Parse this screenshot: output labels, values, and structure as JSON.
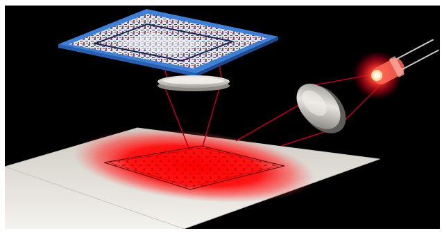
{
  "image": {
    "background_color": "#000000",
    "frame_color": "#ffffff",
    "accent_red": "#ff0000",
    "beam_color": "#b3001b",
    "screen_color": "#e9e6df",
    "chip_border_color": "#3f7fd6",
    "lens_color": "#d9d6cf",
    "elements": [
      "led-light-source",
      "collimating-lens",
      "projection-lens",
      "photomask-chip",
      "exposure-screen",
      "red-exposure-spot",
      "projected-pattern"
    ]
  }
}
